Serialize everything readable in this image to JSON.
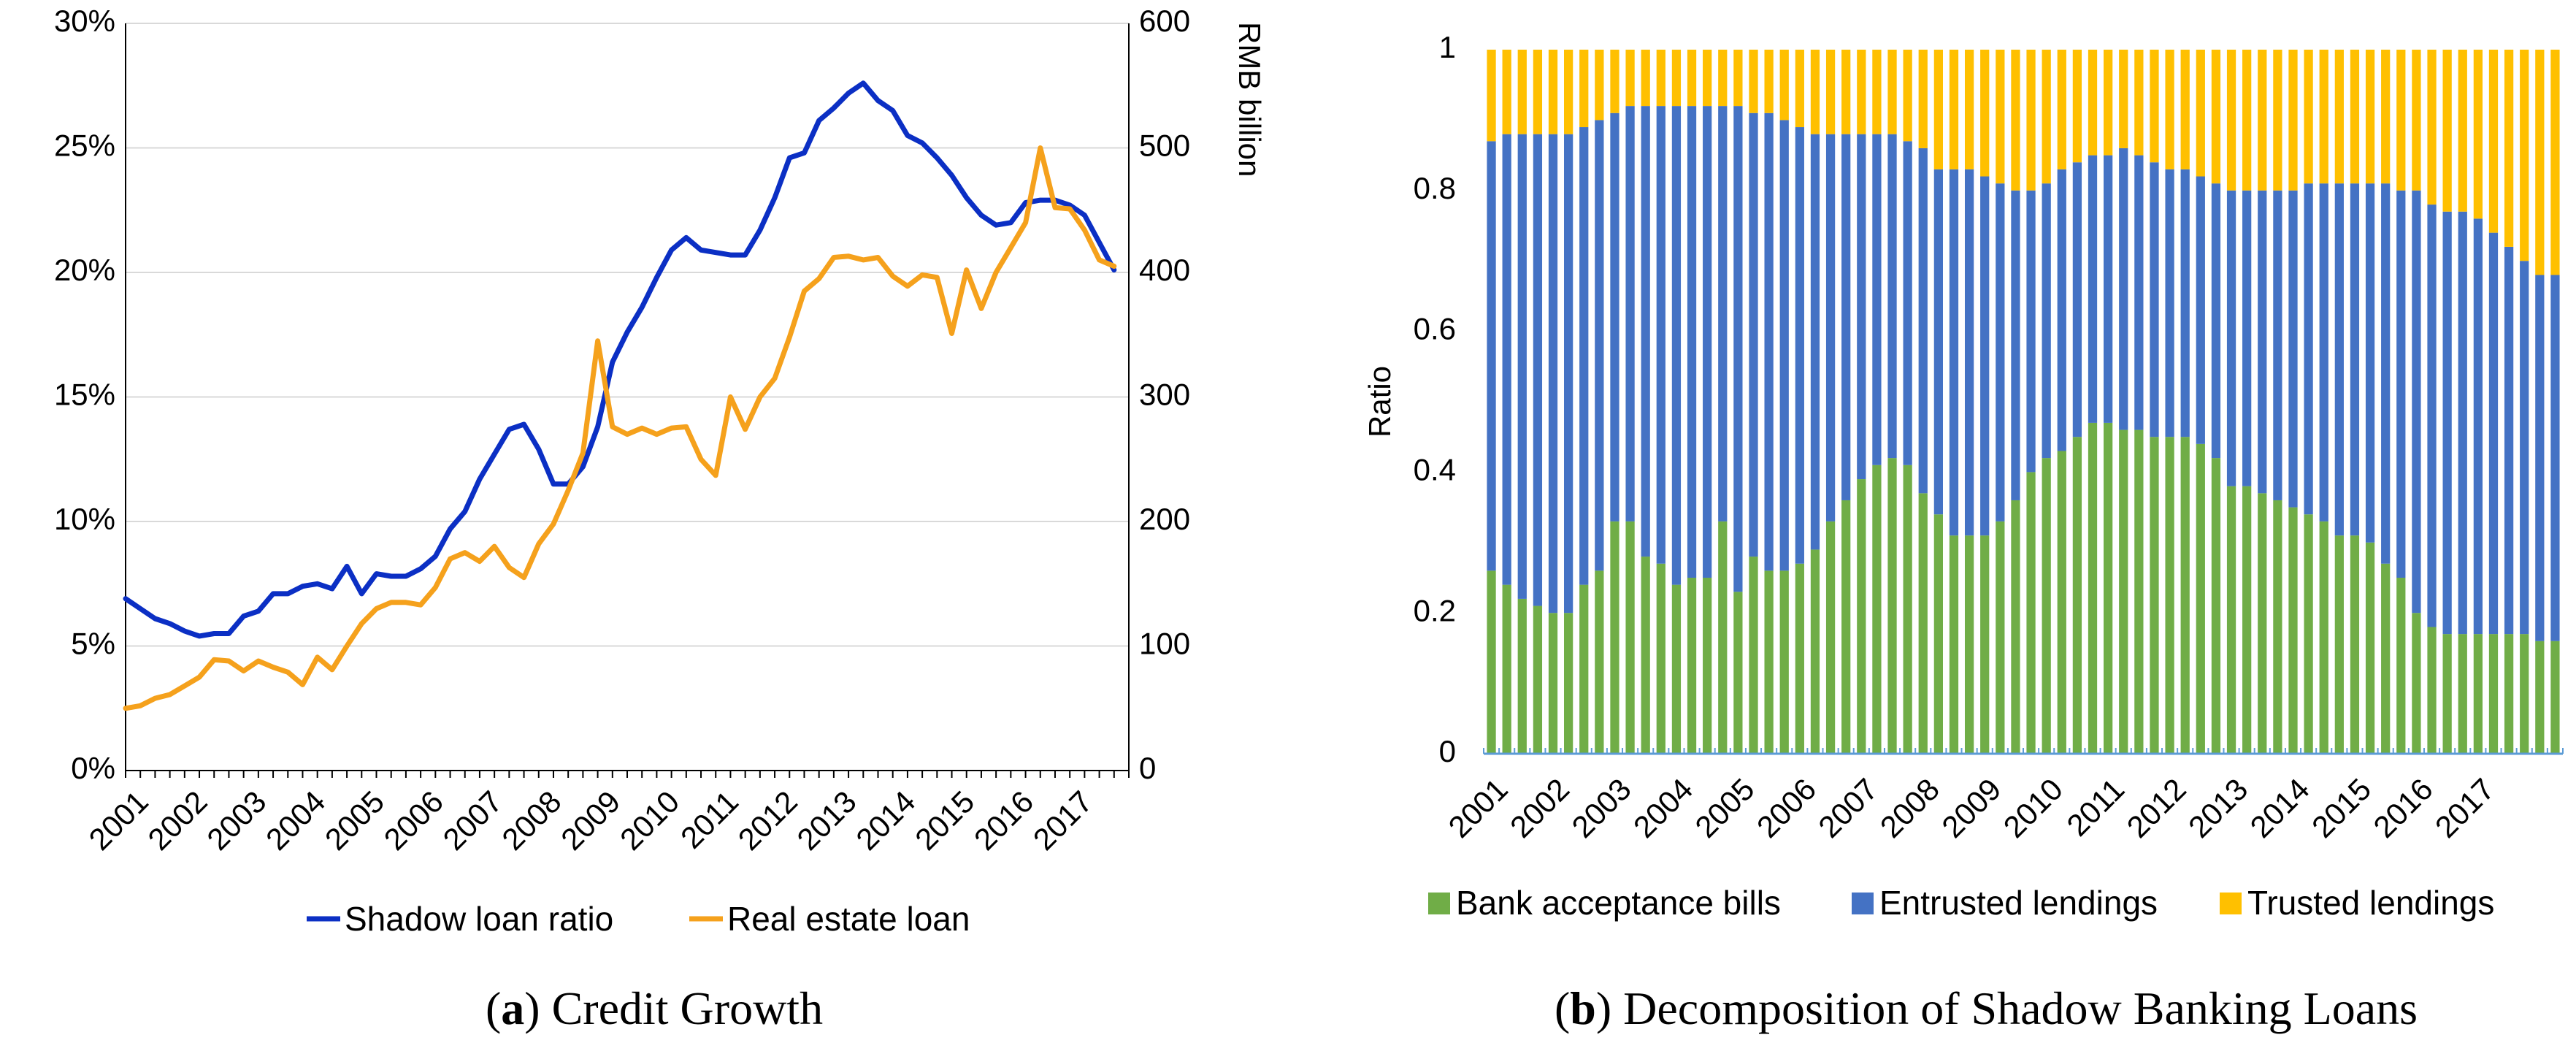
{
  "chart_data": [
    {
      "type": "line",
      "caption": {
        "letter": "a",
        "title": "Credit Growth"
      },
      "x_tick_labels": [
        "2001",
        "2002",
        "2003",
        "2004",
        "2005",
        "2006",
        "2007",
        "2008",
        "2009",
        "2010",
        "2011",
        "2012",
        "2013",
        "2014",
        "2015",
        "2016",
        "2017"
      ],
      "x_range": [
        2001.0,
        2018.0
      ],
      "y_left": {
        "ticks": [
          "0%",
          "5%",
          "10%",
          "15%",
          "20%",
          "25%",
          "30%"
        ],
        "range": [
          0,
          30
        ]
      },
      "y_right": {
        "ticks": [
          "0",
          "100",
          "200",
          "300",
          "400",
          "500",
          "600"
        ],
        "range": [
          0,
          600
        ],
        "label": "RMB billion"
      },
      "grid": "horizontal",
      "legend_position": "bottom",
      "series": [
        {
          "name": "Shadow loan ratio",
          "axis": "left",
          "color": "#0b2fc4",
          "x": [
            2001.0,
            2001.25,
            2001.5,
            2001.75,
            2002.0,
            2002.25,
            2002.5,
            2002.75,
            2003.0,
            2003.25,
            2003.5,
            2003.75,
            2004.0,
            2004.25,
            2004.5,
            2004.75,
            2005.0,
            2005.25,
            2005.5,
            2005.75,
            2006.0,
            2006.25,
            2006.5,
            2006.75,
            2007.0,
            2007.25,
            2007.5,
            2007.75,
            2008.0,
            2008.25,
            2008.5,
            2008.75,
            2009.0,
            2009.25,
            2009.5,
            2009.75,
            2010.0,
            2010.25,
            2010.5,
            2010.75,
            2011.0,
            2011.25,
            2011.5,
            2011.75,
            2012.0,
            2012.25,
            2012.5,
            2012.75,
            2013.0,
            2013.25,
            2013.5,
            2013.75,
            2014.0,
            2014.25,
            2014.5,
            2014.75,
            2015.0,
            2015.25,
            2015.5,
            2015.75,
            2016.0,
            2016.25,
            2016.5,
            2016.75,
            2017.0,
            2017.25,
            2017.5,
            2017.75
          ],
          "values": [
            6.9,
            6.5,
            6.1,
            5.9,
            5.6,
            5.4,
            5.5,
            5.5,
            6.2,
            6.4,
            7.1,
            7.1,
            7.4,
            7.5,
            7.3,
            8.2,
            7.1,
            7.9,
            7.8,
            7.8,
            8.1,
            8.6,
            9.7,
            10.4,
            11.7,
            12.7,
            13.7,
            13.9,
            12.9,
            11.5,
            11.5,
            12.2,
            13.8,
            16.4,
            17.6,
            18.6,
            19.8,
            20.9,
            21.4,
            20.9,
            20.8,
            20.7,
            20.7,
            21.7,
            23.0,
            24.6,
            24.8,
            26.1,
            26.6,
            27.2,
            27.6,
            26.9,
            26.5,
            25.5,
            25.2,
            24.6,
            23.9,
            23.0,
            22.3,
            21.9,
            22.0,
            22.8,
            22.9,
            22.9,
            22.7,
            22.3,
            21.2,
            20.1
          ]
        },
        {
          "name": "Real estate loan",
          "axis": "right",
          "color": "#f5a11c",
          "x": [
            2001.0,
            2001.25,
            2001.5,
            2001.75,
            2002.0,
            2002.25,
            2002.5,
            2002.75,
            2003.0,
            2003.25,
            2003.5,
            2003.75,
            2004.0,
            2004.25,
            2004.5,
            2004.75,
            2005.0,
            2005.25,
            2005.5,
            2005.75,
            2006.0,
            2006.25,
            2006.5,
            2006.75,
            2007.0,
            2007.25,
            2007.5,
            2007.75,
            2008.0,
            2008.25,
            2008.5,
            2008.75,
            2009.0,
            2009.25,
            2009.5,
            2009.75,
            2010.0,
            2010.25,
            2010.5,
            2010.75,
            2011.0,
            2011.25,
            2011.5,
            2011.75,
            2012.0,
            2012.25,
            2012.5,
            2012.75,
            2013.0,
            2013.25,
            2013.5,
            2013.75,
            2014.0,
            2014.25,
            2014.5,
            2014.75,
            2015.0,
            2015.25,
            2015.5,
            2015.75,
            2016.0,
            2016.25,
            2016.5,
            2016.75,
            2017.0,
            2017.25,
            2017.5,
            2017.75
          ],
          "values": [
            50,
            52,
            58,
            61,
            68,
            75,
            89,
            88,
            80,
            88,
            83,
            79,
            69,
            91,
            81,
            100,
            118,
            130,
            135,
            135,
            133,
            147,
            170,
            175,
            168,
            180,
            163,
            155,
            182,
            198,
            225,
            255,
            345,
            276,
            270,
            275,
            270,
            275,
            276,
            250,
            237,
            300,
            274,
            300,
            315,
            348,
            385,
            395,
            412,
            413,
            410,
            412,
            397,
            389,
            398,
            396,
            351,
            402,
            371,
            400,
            420,
            440,
            500,
            452,
            451,
            434,
            410,
            405
          ]
        }
      ]
    },
    {
      "type": "bar",
      "stacked": true,
      "caption": {
        "letter": "b",
        "title": "Decomposition of Shadow Banking Loans"
      },
      "x_tick_labels": [
        "2001",
        "2002",
        "2003",
        "2004",
        "2005",
        "2006",
        "2007",
        "2008",
        "2009",
        "2010",
        "2011",
        "2012",
        "2013",
        "2014",
        "2015",
        "2016",
        "2017"
      ],
      "y_ticks": [
        "0",
        "0.2",
        "0.4",
        "0.6",
        "0.8",
        "1"
      ],
      "ylim": [
        0,
        1
      ],
      "ylabel": "Ratio",
      "legend_position": "bottom",
      "series": [
        {
          "name": "Bank acceptance bills",
          "color": "#70ad47",
          "values": [
            0.26,
            0.24,
            0.22,
            0.21,
            0.2,
            0.2,
            0.24,
            0.26,
            0.33,
            0.33,
            0.28,
            0.27,
            0.24,
            0.25,
            0.25,
            0.33,
            0.23,
            0.28,
            0.26,
            0.26,
            0.27,
            0.29,
            0.33,
            0.36,
            0.39,
            0.41,
            0.42,
            0.41,
            0.37,
            0.34,
            0.31,
            0.31,
            0.31,
            0.33,
            0.36,
            0.4,
            0.42,
            0.43,
            0.45,
            0.47,
            0.47,
            0.46,
            0.46,
            0.45,
            0.45,
            0.45,
            0.44,
            0.42,
            0.38,
            0.38,
            0.37,
            0.36,
            0.35,
            0.34,
            0.33,
            0.31,
            0.31,
            0.3,
            0.27,
            0.25,
            0.2,
            0.18,
            0.17,
            0.17,
            0.17,
            0.17,
            0.17,
            0.17,
            0.16,
            0.16
          ]
        },
        {
          "name": "Entrusted lendings",
          "color": "#4472c4",
          "values": [
            0.61,
            0.64,
            0.66,
            0.67,
            0.68,
            0.68,
            0.65,
            0.64,
            0.58,
            0.59,
            0.64,
            0.65,
            0.68,
            0.67,
            0.67,
            0.59,
            0.69,
            0.63,
            0.65,
            0.64,
            0.62,
            0.59,
            0.55,
            0.52,
            0.49,
            0.47,
            0.46,
            0.46,
            0.49,
            0.49,
            0.52,
            0.52,
            0.51,
            0.48,
            0.44,
            0.4,
            0.39,
            0.4,
            0.39,
            0.38,
            0.38,
            0.4,
            0.39,
            0.39,
            0.38,
            0.38,
            0.38,
            0.39,
            0.42,
            0.42,
            0.43,
            0.44,
            0.45,
            0.47,
            0.48,
            0.5,
            0.5,
            0.51,
            0.54,
            0.55,
            0.6,
            0.6,
            0.6,
            0.6,
            0.59,
            0.57,
            0.55,
            0.53,
            0.52,
            0.52
          ]
        },
        {
          "name": "Trusted lendings",
          "color": "#ffc000",
          "values": [
            0.13,
            0.12,
            0.12,
            0.12,
            0.12,
            0.12,
            0.11,
            0.1,
            0.09,
            0.08,
            0.08,
            0.08,
            0.08,
            0.08,
            0.08,
            0.08,
            0.08,
            0.09,
            0.09,
            0.1,
            0.11,
            0.12,
            0.12,
            0.12,
            0.12,
            0.12,
            0.12,
            0.13,
            0.14,
            0.17,
            0.17,
            0.17,
            0.18,
            0.19,
            0.2,
            0.2,
            0.19,
            0.17,
            0.16,
            0.15,
            0.15,
            0.14,
            0.15,
            0.16,
            0.17,
            0.17,
            0.18,
            0.19,
            0.2,
            0.2,
            0.2,
            0.2,
            0.2,
            0.19,
            0.19,
            0.19,
            0.19,
            0.19,
            0.19,
            0.2,
            0.2,
            0.22,
            0.23,
            0.23,
            0.24,
            0.26,
            0.28,
            0.3,
            0.32,
            0.32
          ]
        }
      ]
    }
  ]
}
